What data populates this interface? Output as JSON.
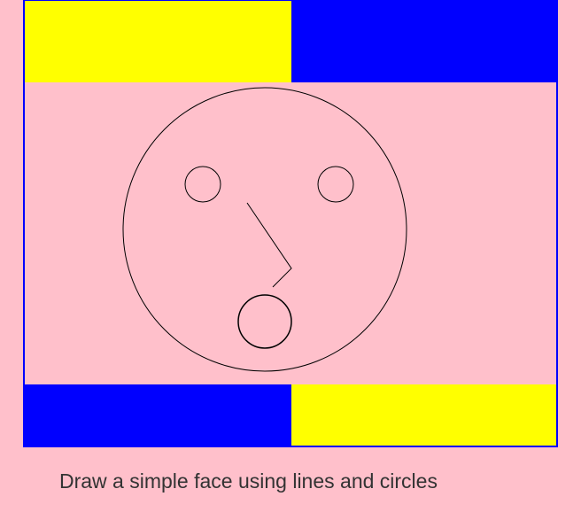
{
  "canvas": {
    "drawing_name": "simple-face",
    "colors": {
      "background": "#ffc0cb",
      "border": "#0000ff",
      "yellow": "#ffff00",
      "blue": "#0000ff",
      "stroke": "#000000"
    },
    "blocks": [
      {
        "name": "top-left-yellow-block",
        "color": "#ffff00"
      },
      {
        "name": "top-right-blue-block",
        "color": "#0000ff"
      },
      {
        "name": "bottom-left-blue-block",
        "color": "#0000ff"
      },
      {
        "name": "bottom-right-yellow-block",
        "color": "#ffff00"
      }
    ],
    "face": {
      "shapes": [
        "head-circle",
        "left-eye-circle",
        "right-eye-circle",
        "nose-line",
        "mouth-circle"
      ]
    }
  },
  "caption": {
    "text": "Draw a simple face using lines and circles"
  }
}
